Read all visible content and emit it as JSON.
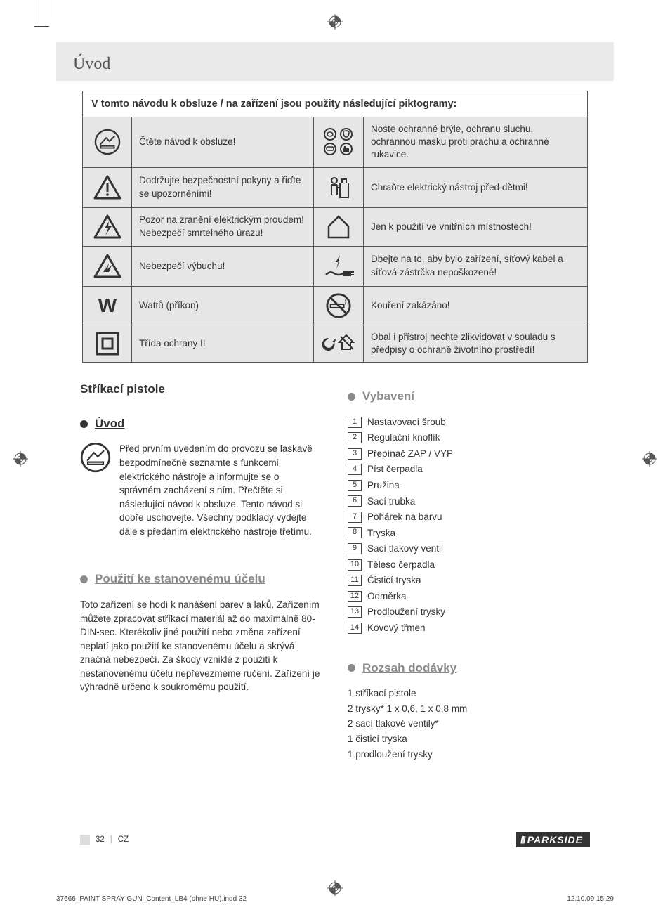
{
  "header": {
    "title": "Úvod"
  },
  "pictogram_table": {
    "heading": "V tomto návodu k obsluze / na zařízení jsou použity následující piktogramy:",
    "rows": [
      {
        "left": "Čtěte návod k obsluze!",
        "right": "Noste ochranné brýle, ochranu sluchu, ochrannou masku proti prachu a ochranné rukavice."
      },
      {
        "left": "Dodržujte bezpečnostní pokyny a řiďte se upozorněními!",
        "right": "Chraňte elektrický nástroj před dětmi!"
      },
      {
        "left": "Pozor na zranění elektrickým proudem! Nebezpečí smrtelného úrazu!",
        "right": "Jen k použití ve vnitřních místnostech!"
      },
      {
        "left": "Nebezpečí výbuchu!",
        "right": "Dbejte na to, aby bylo zařízení, síťový kabel a síťová zástrčka nepoškozené!"
      },
      {
        "left": "Wattů (příkon)",
        "right": "Kouření zakázáno!"
      },
      {
        "left": "Třída ochrany II",
        "right": "Obal i přístroj nechte zlikvidovat v souladu s předpisy o ochraně životního prostředí!"
      }
    ],
    "icon_names_left": [
      "read-manual-icon",
      "warning-icon",
      "electric-shock-icon",
      "explosion-icon",
      "watt-icon",
      "class2-icon"
    ],
    "icon_names_right": [
      "ppe-icon",
      "keep-from-children-icon",
      "indoor-use-icon",
      "damaged-cord-icon",
      "no-smoking-icon",
      "recycle-icon"
    ]
  },
  "left_column": {
    "product_title": "Stříkací pistole",
    "intro_heading": "Úvod",
    "intro_text": "Před prvním uvedením do provozu se laskavě bezpodmínečně seznamte s funkcemi elektrického nástroje a informujte se o správném zacházení s ním. Přečtěte si následující návod k obsluze. Tento návod si dobře uschovejte. Všechny podklady vydejte dále s předáním elektrického nástroje třetímu.",
    "intended_use_heading": "Použití ke stanovenému účelu",
    "intended_use_text": "Toto zařízení se hodí k nanášení barev a laků. Zařízením můžete zpracovat stříkací materiál až do maximálně 80-DIN-sec. Kterékoliv jiné použití nebo změna zařízení neplatí jako použití ke stanovenému účelu a skrývá značná nebezpečí. Za škody vzniklé z použití k nestanovenému účelu nepřevezmeme ručení. Zařízení je výhradně určeno k soukromému použití."
  },
  "right_column": {
    "equipment_heading": "Vybavení",
    "equipment_items": [
      "Nastavovací šroub",
      "Regulační knoflík",
      "Přepínač ZAP / VYP",
      "Píst čerpadla",
      "Pružina",
      "Sací trubka",
      "Pohárek na barvu",
      "Tryska",
      "Sací tlakový ventil",
      "Těleso čerpadla",
      "Čisticí tryska",
      "Odměrka",
      "Prodloužení trysky",
      "Kovový třmen"
    ],
    "supply_heading": "Rozsah dodávky",
    "supply_items": [
      "1 stříkací pistole",
      "2 trysky*  1 x 0,6, 1 x 0,8 mm",
      "2 sací tlakové ventily*",
      "1 čisticí tryska",
      "1 prodloužení trysky"
    ]
  },
  "footer": {
    "page_number": "32",
    "lang_code": "CZ",
    "brand": "PARKSIDE"
  },
  "print_meta": {
    "file": "37666_PAINT SPRAY GUN_Content_LB4 (ohne HU).indd   32",
    "timestamp": "12.10.09   15:29"
  },
  "colors": {
    "band_bg": "#eaeaea",
    "cell_bg": "#e6e6e6",
    "gray_heading": "#8a8a8a",
    "text": "#333333",
    "border": "#555555"
  }
}
